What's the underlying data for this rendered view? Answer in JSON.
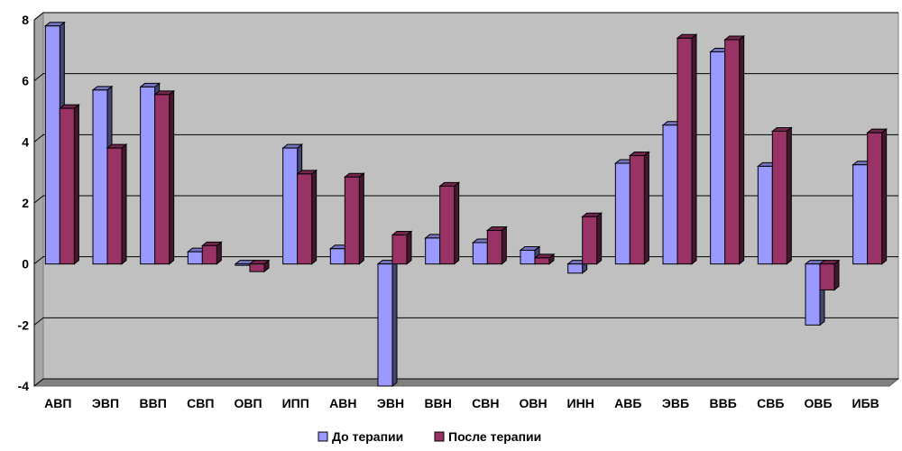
{
  "chart_data": {
    "type": "bar",
    "title": "",
    "xlabel": "",
    "ylabel": "",
    "ylim": [
      -4,
      8
    ],
    "yticks": [
      -4,
      -2,
      0,
      2,
      4,
      6,
      8
    ],
    "grid": true,
    "legend": "bottom",
    "categories": [
      "АВП",
      "ЭВП",
      "ВВП",
      "СВП",
      "ОВП",
      "ИПП",
      "АВН",
      "ЭВН",
      "ВВН",
      "СВН",
      "ОВН",
      "ИНН",
      "АВБ",
      "ЭВБ",
      "ВВБ",
      "СВБ",
      "ОВБ",
      "ИБВ"
    ],
    "series": [
      {
        "name": "До терапии",
        "color": "#9999ff",
        "values": [
          7.8,
          5.7,
          5.8,
          0.4,
          0.0,
          3.8,
          0.5,
          -4.0,
          0.85,
          0.7,
          0.45,
          -0.3,
          3.3,
          4.55,
          6.95,
          3.2,
          -2.0,
          3.25
        ]
      },
      {
        "name": "После терапии",
        "color": "#993366",
        "values": [
          5.1,
          3.8,
          5.55,
          0.6,
          -0.25,
          2.95,
          2.85,
          0.95,
          2.55,
          1.1,
          0.2,
          1.55,
          3.55,
          7.4,
          7.35,
          4.35,
          -0.85,
          4.3
        ]
      }
    ]
  }
}
